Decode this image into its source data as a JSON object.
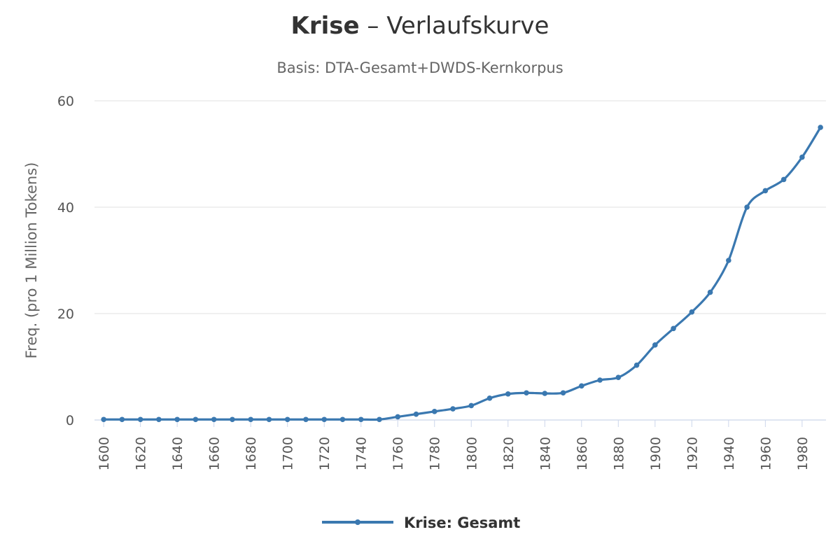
{
  "chart_data": {
    "type": "line",
    "title_main": "Krise",
    "title_rest": " – Verlaufskurve",
    "subtitle": "Basis: DTA-Gesamt+DWDS-Kernkorpus",
    "ylabel": "Freq. (pro 1 Million Tokens)",
    "xlabel": "",
    "ylim": [
      0,
      60
    ],
    "yticks": [
      0,
      20,
      40,
      60
    ],
    "xlim": [
      1600,
      1990
    ],
    "xticks": [
      1600,
      1620,
      1640,
      1660,
      1680,
      1700,
      1720,
      1740,
      1760,
      1780,
      1800,
      1820,
      1840,
      1860,
      1880,
      1900,
      1920,
      1940,
      1960,
      1980
    ],
    "grid": true,
    "legend_position": "bottom",
    "colors": {
      "series": "#3a78b0",
      "grid": "#e6e6e6",
      "axis": "#ccd6eb",
      "text": "#555555",
      "title": "#333333"
    },
    "series": [
      {
        "name": "Krise: Gesamt",
        "x": [
          1600,
          1610,
          1620,
          1630,
          1640,
          1650,
          1660,
          1670,
          1680,
          1690,
          1700,
          1710,
          1720,
          1730,
          1740,
          1750,
          1760,
          1770,
          1780,
          1790,
          1800,
          1810,
          1820,
          1830,
          1840,
          1850,
          1860,
          1870,
          1880,
          1890,
          1900,
          1910,
          1920,
          1930,
          1940,
          1950,
          1960,
          1970,
          1980,
          1990
        ],
        "y": [
          0.1,
          0.1,
          0.1,
          0.1,
          0.1,
          0.1,
          0.1,
          0.1,
          0.1,
          0.1,
          0.1,
          0.1,
          0.1,
          0.1,
          0.1,
          0.1,
          0.6,
          1.1,
          1.6,
          2.1,
          2.7,
          4.1,
          4.9,
          5.1,
          5.0,
          5.1,
          6.4,
          7.5,
          8.0,
          10.3,
          14.1,
          17.2,
          20.3,
          24.0,
          30.0,
          40.0,
          43.1,
          45.2,
          49.4,
          55.0
        ]
      }
    ]
  }
}
